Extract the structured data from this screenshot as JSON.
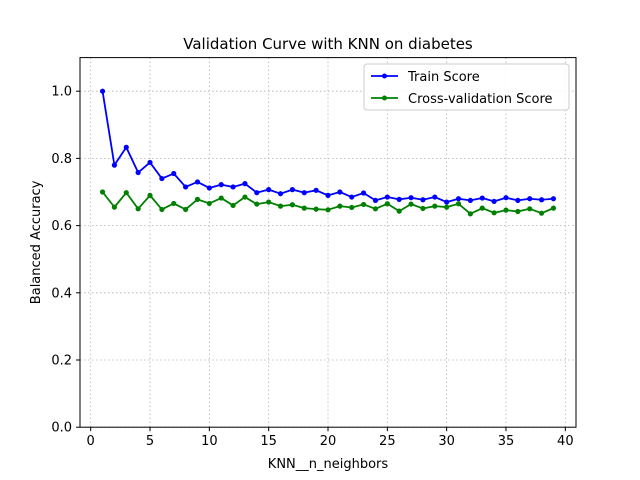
{
  "chart_data": {
    "type": "line",
    "title": "Validation Curve with KNN on diabetes",
    "xlabel": "KNN__n_neighbors",
    "ylabel": "Balanced Accuracy",
    "xlim": [
      -0.9,
      40.9
    ],
    "ylim": [
      0.0,
      1.1
    ],
    "xticks": [
      0,
      5,
      10,
      15,
      20,
      25,
      30,
      35,
      40
    ],
    "yticks": [
      0.0,
      0.2,
      0.4,
      0.6,
      0.8,
      1.0
    ],
    "xtick_labels": [
      "0",
      "5",
      "10",
      "15",
      "20",
      "25",
      "30",
      "35",
      "40"
    ],
    "ytick_labels": [
      "0.0",
      "0.2",
      "0.4",
      "0.6",
      "0.8",
      "1.0"
    ],
    "grid": true,
    "legend_position": "top-right",
    "x": [
      1,
      2,
      3,
      4,
      5,
      6,
      7,
      8,
      9,
      10,
      11,
      12,
      13,
      14,
      15,
      16,
      17,
      18,
      19,
      20,
      21,
      22,
      23,
      24,
      25,
      26,
      27,
      28,
      29,
      30,
      31,
      32,
      33,
      34,
      35,
      36,
      37,
      38,
      39
    ],
    "series": [
      {
        "name": "Train Score",
        "color": "#0000ff",
        "values": [
          1.0,
          0.78,
          0.833,
          0.758,
          0.788,
          0.74,
          0.755,
          0.715,
          0.73,
          0.712,
          0.722,
          0.715,
          0.725,
          0.698,
          0.707,
          0.695,
          0.707,
          0.698,
          0.705,
          0.69,
          0.7,
          0.685,
          0.697,
          0.675,
          0.685,
          0.678,
          0.683,
          0.677,
          0.685,
          0.67,
          0.68,
          0.675,
          0.682,
          0.672,
          0.683,
          0.675,
          0.68,
          0.677,
          0.68
        ]
      },
      {
        "name": "Cross-validation Score",
        "color": "#008000",
        "values": [
          0.7,
          0.655,
          0.698,
          0.65,
          0.69,
          0.648,
          0.666,
          0.648,
          0.678,
          0.666,
          0.682,
          0.66,
          0.685,
          0.664,
          0.67,
          0.658,
          0.662,
          0.652,
          0.649,
          0.647,
          0.658,
          0.654,
          0.663,
          0.65,
          0.665,
          0.643,
          0.664,
          0.651,
          0.658,
          0.655,
          0.665,
          0.635,
          0.652,
          0.638,
          0.646,
          0.642,
          0.65,
          0.637,
          0.652
        ]
      }
    ]
  }
}
